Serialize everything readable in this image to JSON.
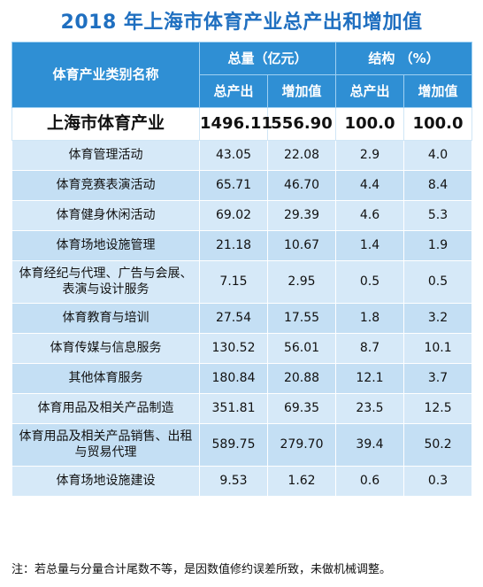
{
  "title": "2018 年上海市体育产业总产出和增加值",
  "header": {
    "category_label": "体育产业类别名称",
    "total_group": "总量（亿元）",
    "structure_group": "结构 （%）",
    "output": "总产出",
    "added_value": "增加值",
    "output2": "总产出",
    "added_value2": "增加值"
  },
  "total_row": {
    "name": "上海市体育产业",
    "output": "1496.11",
    "added_value": "556.90",
    "output_pct": "100.0",
    "added_value_pct": "100.0"
  },
  "rows": [
    {
      "name": "体育管理活动",
      "output": "43.05",
      "added_value": "22.08",
      "output_pct": "2.9",
      "added_value_pct": "4.0"
    },
    {
      "name": "体育竞赛表演活动",
      "output": "65.71",
      "added_value": "46.70",
      "output_pct": "4.4",
      "added_value_pct": "8.4"
    },
    {
      "name": "体育健身休闲活动",
      "output": "69.02",
      "added_value": "29.39",
      "output_pct": "4.6",
      "added_value_pct": "5.3"
    },
    {
      "name": "体育场地设施管理",
      "output": "21.18",
      "added_value": "10.67",
      "output_pct": "1.4",
      "added_value_pct": "1.9"
    },
    {
      "name": "体育经纪与代理、广告与会展、表演与设计服务",
      "output": "7.15",
      "added_value": "2.95",
      "output_pct": "0.5",
      "added_value_pct": "0.5"
    },
    {
      "name": "体育教育与培训",
      "output": "27.54",
      "added_value": "17.55",
      "output_pct": "1.8",
      "added_value_pct": "3.2"
    },
    {
      "name": "体育传媒与信息服务",
      "output": "130.52",
      "added_value": "56.01",
      "output_pct": "8.7",
      "added_value_pct": "10.1"
    },
    {
      "name": "其他体育服务",
      "output": "180.84",
      "added_value": "20.88",
      "output_pct": "12.1",
      "added_value_pct": "3.7"
    },
    {
      "name": "体育用品及相关产品制造",
      "output": "351.81",
      "added_value": "69.35",
      "output_pct": "23.5",
      "added_value_pct": "12.5"
    },
    {
      "name": "体育用品及相关产品销售、出租与贸易代理",
      "output": "589.75",
      "added_value": "279.70",
      "output_pct": "39.4",
      "added_value_pct": "50.2"
    },
    {
      "name": "体育场地设施建设",
      "output": "9.53",
      "added_value": "1.62",
      "output_pct": "0.6",
      "added_value_pct": "0.3"
    }
  ],
  "footnote": "注：若总量与分量合计尾数不等，是因数值修约误差所致，未做机械调整。",
  "colors": {
    "title": "#1f6fc0",
    "header_bg": "#2f8fd4",
    "row_bg": "#d6e9f8",
    "row_bg_alt": "#c4dff4"
  }
}
